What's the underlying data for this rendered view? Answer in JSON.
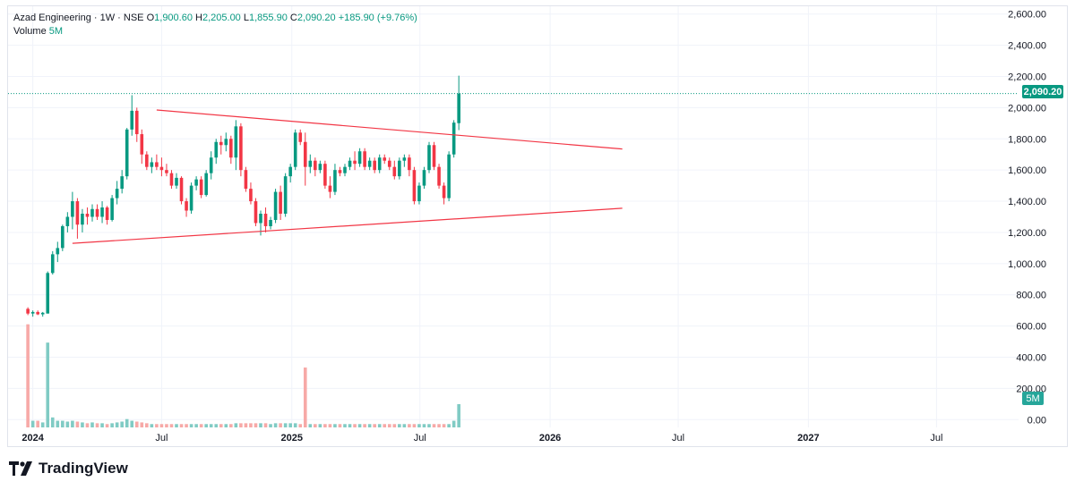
{
  "legend": {
    "symbol_line": "Azad Engineering · 1W · NSE",
    "o_label": "O",
    "o_value": "1,900.60",
    "h_label": "H",
    "h_value": "2,205.00",
    "l_label": "L",
    "l_value": "1,855.90",
    "c_label": "C",
    "c_value": "2,090.20",
    "change": "+185.90 (+9.76%)",
    "volume_label": "Volume",
    "volume_value": "5M"
  },
  "price_badge": "2,090.20",
  "volume_badge": "5M",
  "brand": {
    "name": "TradingView"
  },
  "colors": {
    "up": "#089981",
    "down": "#f23645",
    "up_vol": "#80cbc4",
    "down_vol": "#f7a9a7",
    "trendline": "#f23645",
    "grid": "#f0f3fa",
    "last_price_line": "#089981"
  },
  "chart_data": {
    "type": "candlestick",
    "timeframe": "1W",
    "exchange": "NSE",
    "y_axis": {
      "ylim": [
        -50,
        2650
      ],
      "ticks": [
        0,
        200,
        400,
        600,
        800,
        1000,
        1200,
        1400,
        1600,
        1800,
        2000,
        2200,
        2400,
        2600
      ],
      "tick_labels": [
        "0.00",
        "200.00",
        "400.00",
        "600.00",
        "800.00",
        "1,000.00",
        "1,200.00",
        "1,400.00",
        "1,600.00",
        "1,800.00",
        "2,000.00",
        "2,200.00",
        "2,400.00",
        "2,600.00"
      ]
    },
    "x_axis": {
      "start_date": "2023-11-27",
      "end_date": "2027-10-25",
      "labels": [
        {
          "text": "2024",
          "date": "2024-01-01",
          "major": true
        },
        {
          "text": "Jul",
          "date": "2024-07-01",
          "major": false
        },
        {
          "text": "2025",
          "date": "2025-01-01",
          "major": true
        },
        {
          "text": "Jul",
          "date": "2025-07-01",
          "major": false
        },
        {
          "text": "2026",
          "date": "2026-01-01",
          "major": true
        },
        {
          "text": "Jul",
          "date": "2026-07-01",
          "major": false
        },
        {
          "text": "2027",
          "date": "2027-01-01",
          "major": true
        },
        {
          "text": "Jul",
          "date": "2027-07-01",
          "major": false
        }
      ]
    },
    "candles_start_date": "2023-12-25",
    "candles": [
      [
        710,
        720,
        670,
        680,
        620
      ],
      [
        680,
        700,
        660,
        690,
        40
      ],
      [
        690,
        700,
        670,
        675,
        40
      ],
      [
        675,
        690,
        660,
        685,
        30
      ],
      [
        680,
        950,
        680,
        940,
        510
      ],
      [
        940,
        1080,
        930,
        1060,
        60
      ],
      [
        1060,
        1140,
        1010,
        1100,
        40
      ],
      [
        1100,
        1250,
        1080,
        1240,
        40
      ],
      [
        1240,
        1330,
        1200,
        1300,
        35
      ],
      [
        1300,
        1460,
        1220,
        1400,
        40
      ],
      [
        1400,
        1420,
        1160,
        1250,
        35
      ],
      [
        1250,
        1350,
        1200,
        1320,
        30
      ],
      [
        1320,
        1360,
        1250,
        1300,
        25
      ],
      [
        1300,
        1380,
        1270,
        1350,
        30
      ],
      [
        1350,
        1380,
        1280,
        1300,
        25
      ],
      [
        1300,
        1400,
        1260,
        1360,
        25
      ],
      [
        1360,
        1370,
        1250,
        1280,
        20
      ],
      [
        1280,
        1440,
        1270,
        1420,
        25
      ],
      [
        1420,
        1530,
        1380,
        1480,
        30
      ],
      [
        1480,
        1600,
        1450,
        1560,
        35
      ],
      [
        1560,
        1870,
        1540,
        1860,
        50
      ],
      [
        1860,
        2080,
        1820,
        1980,
        40
      ],
      [
        1980,
        2000,
        1780,
        1830,
        35
      ],
      [
        1830,
        1860,
        1640,
        1700,
        30
      ],
      [
        1700,
        1720,
        1600,
        1620,
        25
      ],
      [
        1620,
        1680,
        1580,
        1650,
        20
      ],
      [
        1650,
        1700,
        1600,
        1620,
        20
      ],
      [
        1620,
        1680,
        1560,
        1600,
        20
      ],
      [
        1600,
        1640,
        1560,
        1580,
        20
      ],
      [
        1580,
        1600,
        1480,
        1500,
        20
      ],
      [
        1500,
        1580,
        1480,
        1550,
        20
      ],
      [
        1550,
        1560,
        1380,
        1400,
        20
      ],
      [
        1400,
        1420,
        1300,
        1340,
        20
      ],
      [
        1340,
        1520,
        1320,
        1500,
        20
      ],
      [
        1500,
        1560,
        1470,
        1540,
        20
      ],
      [
        1540,
        1560,
        1420,
        1440,
        20
      ],
      [
        1440,
        1600,
        1430,
        1580,
        20
      ],
      [
        1580,
        1720,
        1540,
        1680,
        20
      ],
      [
        1680,
        1800,
        1640,
        1780,
        20
      ],
      [
        1780,
        1820,
        1700,
        1760,
        20
      ],
      [
        1760,
        1840,
        1720,
        1800,
        20
      ],
      [
        1800,
        1820,
        1640,
        1680,
        20
      ],
      [
        1680,
        1920,
        1600,
        1880,
        25
      ],
      [
        1880,
        1900,
        1560,
        1600,
        25
      ],
      [
        1600,
        1620,
        1460,
        1480,
        25
      ],
      [
        1480,
        1520,
        1380,
        1400,
        25
      ],
      [
        1400,
        1420,
        1240,
        1260,
        25
      ],
      [
        1260,
        1340,
        1180,
        1320,
        25
      ],
      [
        1320,
        1360,
        1200,
        1240,
        25
      ],
      [
        1240,
        1300,
        1220,
        1280,
        20
      ],
      [
        1280,
        1480,
        1260,
        1460,
        25
      ],
      [
        1460,
        1500,
        1280,
        1320,
        25
      ],
      [
        1320,
        1580,
        1300,
        1560,
        25
      ],
      [
        1560,
        1640,
        1520,
        1620,
        25
      ],
      [
        1620,
        1860,
        1600,
        1840,
        25
      ],
      [
        1840,
        1860,
        1760,
        1780,
        20
      ],
      [
        1780,
        1840,
        1500,
        1620,
        360
      ],
      [
        1620,
        1700,
        1580,
        1660,
        20
      ],
      [
        1660,
        1680,
        1560,
        1600,
        20
      ],
      [
        1600,
        1660,
        1580,
        1640,
        20
      ],
      [
        1640,
        1660,
        1480,
        1500,
        20
      ],
      [
        1500,
        1560,
        1420,
        1460,
        20
      ],
      [
        1460,
        1640,
        1440,
        1600,
        20
      ],
      [
        1600,
        1620,
        1560,
        1580,
        20
      ],
      [
        1580,
        1640,
        1560,
        1620,
        20
      ],
      [
        1620,
        1680,
        1600,
        1660,
        20
      ],
      [
        1660,
        1720,
        1600,
        1640,
        20
      ],
      [
        1640,
        1740,
        1620,
        1720,
        20
      ],
      [
        1720,
        1740,
        1600,
        1620,
        20
      ],
      [
        1620,
        1680,
        1600,
        1660,
        20
      ],
      [
        1660,
        1680,
        1580,
        1600,
        20
      ],
      [
        1600,
        1700,
        1580,
        1680,
        20
      ],
      [
        1680,
        1700,
        1640,
        1660,
        20
      ],
      [
        1660,
        1680,
        1600,
        1620,
        20
      ],
      [
        1620,
        1660,
        1540,
        1560,
        20
      ],
      [
        1560,
        1680,
        1540,
        1660,
        20
      ],
      [
        1660,
        1700,
        1620,
        1680,
        20
      ],
      [
        1680,
        1700,
        1560,
        1600,
        20
      ],
      [
        1600,
        1620,
        1380,
        1400,
        20
      ],
      [
        1400,
        1520,
        1380,
        1500,
        20
      ],
      [
        1500,
        1620,
        1480,
        1600,
        20
      ],
      [
        1600,
        1780,
        1580,
        1760,
        20
      ],
      [
        1760,
        1780,
        1600,
        1620,
        20
      ],
      [
        1620,
        1640,
        1480,
        1500,
        20
      ],
      [
        1500,
        1520,
        1380,
        1420,
        20
      ],
      [
        1420,
        1720,
        1400,
        1700,
        20
      ],
      [
        1700,
        1920,
        1680,
        1904,
        40
      ],
      [
        1900.6,
        2205,
        1855.9,
        2090.2,
        140
      ]
    ],
    "trendlines": [
      {
        "name": "upper",
        "start": {
          "date": "2024-06-24",
          "price": 1985
        },
        "end": {
          "date": "2026-04-13",
          "price": 1735
        }
      },
      {
        "name": "lower",
        "start": {
          "date": "2024-02-26",
          "price": 1130
        },
        "end": {
          "date": "2026-04-13",
          "price": 1355
        }
      }
    ],
    "last_price": 2090.2
  }
}
